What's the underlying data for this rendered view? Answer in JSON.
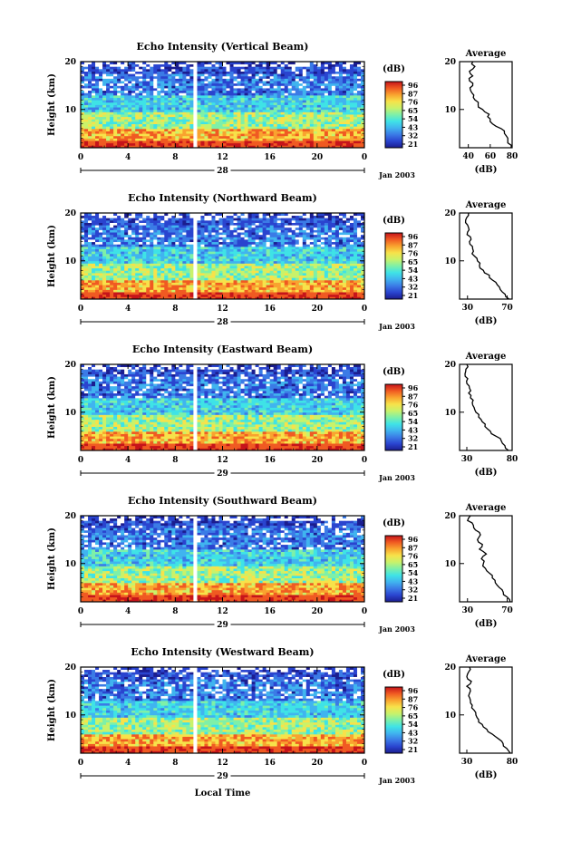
{
  "figure": {
    "x_axis_label": "Local Time",
    "date_label": "Jan 2003",
    "colorbar_unit": "(dB)",
    "colorbar_ticks": [
      "96",
      "87",
      "76",
      "65",
      "54",
      "43",
      "32",
      "21"
    ],
    "average_title": "Average",
    "average_unit": "(dB)",
    "colormap": [
      "#1b1d8f",
      "#2a44cf",
      "#3b7be6",
      "#40b4ef",
      "#3fe3e6",
      "#7ef0a8",
      "#c9f26a",
      "#f7e24a",
      "#f9a32f",
      "#f05a22",
      "#c6141a"
    ]
  },
  "chart_data": [
    {
      "type": "heatmap",
      "title": "Echo Intensity (Vertical Beam)",
      "ylabel": "Height (km)",
      "xlabel": "Local Time",
      "x_ticks": [
        "0",
        "4",
        "8",
        "12",
        "16",
        "20",
        "0"
      ],
      "day_label": "28",
      "y_ticks": [
        "20",
        "10"
      ],
      "xlim": [
        0,
        24
      ],
      "ylim": [
        2,
        20
      ],
      "colorbar": {
        "unit": "(dB)",
        "ticks": [
          "96",
          "87",
          "76",
          "65",
          "54",
          "43",
          "32",
          "21"
        ]
      },
      "profile": {
        "title": "Average",
        "xlabel": "(dB)",
        "x_ticks": [
          "40",
          "60",
          "80"
        ],
        "xlim": [
          32,
          80
        ],
        "y_ticks": [
          "20",
          "10"
        ],
        "heights": [
          2,
          3,
          4,
          5,
          6,
          7,
          8,
          9,
          10,
          11,
          12,
          13,
          14,
          15,
          16,
          17,
          18,
          19,
          20
        ],
        "values": [
          79,
          76,
          76,
          73,
          70,
          62,
          60,
          59,
          53,
          49,
          46,
          45,
          42,
          44,
          41,
          44,
          41,
          46,
          44
        ]
      }
    },
    {
      "type": "heatmap",
      "title": "Echo Intensity (Northward Beam)",
      "ylabel": "Height (km)",
      "xlabel": "Local Time",
      "x_ticks": [
        "0",
        "4",
        "8",
        "12",
        "16",
        "20",
        "0"
      ],
      "day_label": "28",
      "y_ticks": [
        "20",
        "10"
      ],
      "xlim": [
        0,
        24
      ],
      "ylim": [
        2,
        20
      ],
      "colorbar": {
        "unit": "(dB)",
        "ticks": [
          "96",
          "87",
          "76",
          "65",
          "54",
          "43",
          "32",
          "21"
        ]
      },
      "profile": {
        "title": "Average",
        "xlabel": "(dB)",
        "x_ticks": [
          "30",
          "70"
        ],
        "xlim": [
          22,
          75
        ],
        "y_ticks": [
          "20",
          "10"
        ],
        "heights": [
          2,
          3,
          4,
          5,
          6,
          7,
          8,
          9,
          10,
          11,
          12,
          13,
          14,
          15,
          16,
          17,
          18,
          19,
          20
        ],
        "values": [
          72,
          68,
          63,
          60,
          55,
          52,
          46,
          42,
          40,
          37,
          36,
          35,
          32,
          33,
          30,
          31,
          28,
          29,
          31
        ]
      }
    },
    {
      "type": "heatmap",
      "title": "Echo Intensity (Eastward Beam)",
      "ylabel": "Height (km)",
      "xlabel": "Local Time",
      "x_ticks": [
        "0",
        "4",
        "8",
        "12",
        "16",
        "20",
        "0"
      ],
      "day_label": "29",
      "y_ticks": [
        "20",
        "10"
      ],
      "xlim": [
        0,
        24
      ],
      "ylim": [
        2,
        20
      ],
      "colorbar": {
        "unit": "(dB)",
        "ticks": [
          "96",
          "87",
          "76",
          "65",
          "54",
          "43",
          "32",
          "21"
        ]
      },
      "profile": {
        "title": "Average",
        "xlabel": "(dB)",
        "x_ticks": [
          "30",
          "80"
        ],
        "xlim": [
          22,
          80
        ],
        "y_ticks": [
          "20",
          "10"
        ],
        "heights": [
          2,
          3,
          4,
          5,
          6,
          7,
          8,
          9,
          10,
          11,
          12,
          13,
          14,
          15,
          16,
          17,
          18,
          19,
          20
        ],
        "values": [
          76,
          72,
          68,
          62,
          56,
          50,
          47,
          43,
          40,
          38,
          36,
          34,
          32,
          33,
          30,
          31,
          28,
          29,
          30
        ]
      }
    },
    {
      "type": "heatmap",
      "title": "Echo Intensity (Southward Beam)",
      "ylabel": "Height (km)",
      "xlabel": "Local Time",
      "x_ticks": [
        "0",
        "4",
        "8",
        "12",
        "16",
        "20",
        "0"
      ],
      "day_label": "29",
      "y_ticks": [
        "20",
        "10"
      ],
      "xlim": [
        0,
        24
      ],
      "ylim": [
        2,
        20
      ],
      "colorbar": {
        "unit": "(dB)",
        "ticks": [
          "96",
          "87",
          "76",
          "65",
          "54",
          "43",
          "32",
          "21"
        ]
      },
      "profile": {
        "title": "Average",
        "xlabel": "(dB)",
        "x_ticks": [
          "30",
          "70"
        ],
        "xlim": [
          22,
          75
        ],
        "y_ticks": [
          "20",
          "10"
        ],
        "heights": [
          2,
          3,
          4,
          5,
          6,
          7,
          8,
          9,
          10,
          11,
          12,
          13,
          14,
          15,
          16,
          17,
          18,
          19,
          20
        ],
        "values": [
          73,
          70,
          66,
          62,
          58,
          55,
          52,
          48,
          46,
          44,
          49,
          42,
          45,
          40,
          43,
          38,
          36,
          30,
          33
        ]
      }
    },
    {
      "type": "heatmap",
      "title": "Echo Intensity (Westward Beam)",
      "ylabel": "Height (km)",
      "xlabel": "Local Time",
      "x_ticks": [
        "0",
        "4",
        "8",
        "12",
        "16",
        "20",
        "0"
      ],
      "day_label": "29",
      "y_ticks": [
        "20",
        "10"
      ],
      "xlim": [
        0,
        24
      ],
      "ylim": [
        2,
        20
      ],
      "colorbar": {
        "unit": "(dB)",
        "ticks": [
          "96",
          "87",
          "76",
          "65",
          "54",
          "43",
          "32",
          "21"
        ]
      },
      "profile": {
        "title": "Average",
        "xlabel": "(dB)",
        "x_ticks": [
          "30",
          "80"
        ],
        "xlim": [
          22,
          80
        ],
        "y_ticks": [
          "20",
          "10"
        ],
        "heights": [
          2,
          3,
          4,
          5,
          6,
          7,
          8,
          9,
          10,
          11,
          12,
          13,
          14,
          15,
          16,
          17,
          18,
          19,
          20
        ],
        "values": [
          78,
          74,
          70,
          65,
          58,
          52,
          47,
          43,
          40,
          38,
          36,
          34,
          32,
          34,
          30,
          35,
          30,
          32,
          33
        ]
      }
    }
  ]
}
